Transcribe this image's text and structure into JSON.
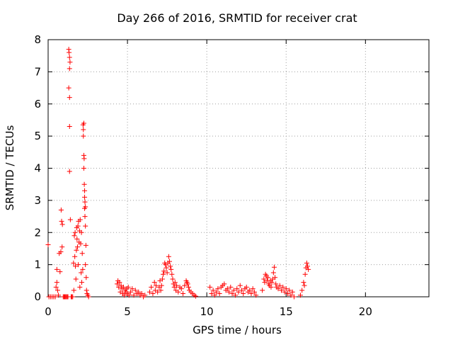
{
  "chart_data": {
    "type": "scatter",
    "title": "Day 266 of 2016, SRMTID for receiver crat",
    "xlabel": "GPS time / hours",
    "ylabel": "SRMTID / TECUs",
    "xlim": [
      0,
      24
    ],
    "ylim": [
      0,
      8
    ],
    "xticks": [
      0,
      5,
      10,
      15,
      20
    ],
    "yticks": [
      0,
      1,
      2,
      3,
      4,
      5,
      6,
      7,
      8
    ],
    "marker": "+",
    "color": "#ff0000",
    "grid": true,
    "series": [
      {
        "name": "crat",
        "points": [
          [
            0.0,
            1.62
          ],
          [
            0.05,
            0.0
          ],
          [
            0.15,
            0.0
          ],
          [
            0.25,
            0.0
          ],
          [
            0.35,
            0.0
          ],
          [
            0.45,
            0.0
          ],
          [
            0.5,
            0.3
          ],
          [
            0.55,
            0.45
          ],
          [
            0.55,
            0.85
          ],
          [
            0.6,
            0.2
          ],
          [
            0.65,
            0.05
          ],
          [
            0.7,
            1.35
          ],
          [
            0.75,
            0.78
          ],
          [
            0.8,
            1.4
          ],
          [
            0.82,
            2.7
          ],
          [
            0.85,
            2.35
          ],
          [
            0.88,
            1.55
          ],
          [
            0.9,
            2.25
          ],
          [
            0.95,
            0.0
          ],
          [
            1.0,
            0.0
          ],
          [
            1.05,
            0.0
          ],
          [
            1.1,
            0.0
          ],
          [
            1.15,
            0.0
          ],
          [
            1.2,
            0.0
          ],
          [
            1.25,
            0.0
          ],
          [
            1.3,
            7.7
          ],
          [
            1.32,
            7.6
          ],
          [
            1.35,
            7.45
          ],
          [
            1.35,
            7.1
          ],
          [
            1.38,
            7.3
          ],
          [
            1.3,
            6.5
          ],
          [
            1.35,
            6.2
          ],
          [
            1.35,
            5.3
          ],
          [
            1.35,
            3.9
          ],
          [
            1.4,
            2.4
          ],
          [
            1.45,
            0.0
          ],
          [
            1.5,
            0.0
          ],
          [
            1.55,
            0.0
          ],
          [
            1.6,
            1.05
          ],
          [
            1.62,
            0.2
          ],
          [
            1.65,
            1.9
          ],
          [
            1.68,
            1.25
          ],
          [
            1.7,
            2.0
          ],
          [
            1.72,
            0.95
          ],
          [
            1.75,
            0.55
          ],
          [
            1.78,
            1.45
          ],
          [
            1.8,
            2.15
          ],
          [
            1.82,
            1.8
          ],
          [
            1.85,
            1.55
          ],
          [
            1.88,
            2.2
          ],
          [
            1.9,
            1.0
          ],
          [
            1.92,
            2.35
          ],
          [
            1.95,
            1.7
          ],
          [
            1.98,
            2.05
          ],
          [
            2.0,
            0.3
          ],
          [
            2.02,
            2.4
          ],
          [
            2.05,
            1.65
          ],
          [
            2.08,
            0.75
          ],
          [
            2.1,
            2.0
          ],
          [
            2.12,
            0.45
          ],
          [
            2.15,
            1.35
          ],
          [
            2.18,
            0.85
          ],
          [
            2.2,
            5.35
          ],
          [
            2.22,
            5.2
          ],
          [
            2.22,
            5.0
          ],
          [
            2.25,
            5.4
          ],
          [
            2.25,
            4.4
          ],
          [
            2.27,
            4.3
          ],
          [
            2.25,
            4.0
          ],
          [
            2.28,
            3.5
          ],
          [
            2.3,
            3.3
          ],
          [
            2.3,
            3.1
          ],
          [
            2.32,
            2.95
          ],
          [
            2.3,
            2.75
          ],
          [
            2.35,
            2.8
          ],
          [
            2.32,
            2.5
          ],
          [
            2.35,
            2.2
          ],
          [
            2.38,
            1.6
          ],
          [
            2.35,
            1.0
          ],
          [
            2.4,
            0.6
          ],
          [
            2.42,
            0.2
          ],
          [
            2.45,
            0.1
          ],
          [
            2.5,
            0.05
          ],
          [
            2.55,
            0.0
          ],
          [
            4.35,
            0.4
          ],
          [
            4.4,
            0.5
          ],
          [
            4.45,
            0.3
          ],
          [
            4.5,
            0.45
          ],
          [
            4.55,
            0.15
          ],
          [
            4.6,
            0.35
          ],
          [
            4.65,
            0.25
          ],
          [
            4.7,
            0.1
          ],
          [
            4.75,
            0.3
          ],
          [
            4.8,
            0.05
          ],
          [
            4.85,
            0.2
          ],
          [
            4.9,
            0.15
          ],
          [
            4.95,
            0.25
          ],
          [
            5.0,
            0.1
          ],
          [
            5.05,
            0.3
          ],
          [
            5.1,
            0.05
          ],
          [
            5.2,
            0.15
          ],
          [
            5.3,
            0.25
          ],
          [
            5.4,
            0.05
          ],
          [
            5.5,
            0.2
          ],
          [
            5.6,
            0.1
          ],
          [
            5.7,
            0.15
          ],
          [
            5.8,
            0.05
          ],
          [
            5.9,
            0.1
          ],
          [
            6.0,
            0.0
          ],
          [
            6.1,
            0.05
          ],
          [
            6.4,
            0.15
          ],
          [
            6.5,
            0.3
          ],
          [
            6.6,
            0.1
          ],
          [
            6.7,
            0.45
          ],
          [
            6.75,
            0.2
          ],
          [
            6.8,
            0.35
          ],
          [
            6.9,
            0.15
          ],
          [
            7.0,
            0.3
          ],
          [
            7.05,
            0.5
          ],
          [
            7.1,
            0.2
          ],
          [
            7.15,
            0.35
          ],
          [
            7.2,
            0.55
          ],
          [
            7.25,
            0.7
          ],
          [
            7.3,
            0.8
          ],
          [
            7.35,
            1.05
          ],
          [
            7.4,
            1.0
          ],
          [
            7.45,
            0.9
          ],
          [
            7.5,
            0.75
          ],
          [
            7.55,
            1.05
          ],
          [
            7.6,
            1.25
          ],
          [
            7.65,
            1.1
          ],
          [
            7.7,
            0.95
          ],
          [
            7.75,
            0.85
          ],
          [
            7.8,
            0.7
          ],
          [
            7.85,
            0.55
          ],
          [
            7.9,
            0.4
          ],
          [
            7.95,
            0.3
          ],
          [
            8.0,
            0.45
          ],
          [
            8.05,
            0.2
          ],
          [
            8.1,
            0.35
          ],
          [
            8.2,
            0.15
          ],
          [
            8.3,
            0.3
          ],
          [
            8.4,
            0.25
          ],
          [
            8.5,
            0.1
          ],
          [
            8.6,
            0.35
          ],
          [
            8.7,
            0.5
          ],
          [
            8.75,
            0.45
          ],
          [
            8.8,
            0.4
          ],
          [
            8.85,
            0.3
          ],
          [
            8.9,
            0.2
          ],
          [
            9.0,
            0.15
          ],
          [
            9.1,
            0.1
          ],
          [
            9.2,
            0.05
          ],
          [
            9.3,
            0.02
          ],
          [
            10.2,
            0.3
          ],
          [
            10.3,
            0.1
          ],
          [
            10.4,
            0.2
          ],
          [
            10.5,
            0.05
          ],
          [
            10.6,
            0.15
          ],
          [
            10.7,
            0.25
          ],
          [
            10.8,
            0.1
          ],
          [
            10.9,
            0.3
          ],
          [
            11.0,
            0.35
          ],
          [
            11.1,
            0.4
          ],
          [
            11.2,
            0.2
          ],
          [
            11.3,
            0.25
          ],
          [
            11.4,
            0.15
          ],
          [
            11.5,
            0.3
          ],
          [
            11.6,
            0.1
          ],
          [
            11.7,
            0.2
          ],
          [
            11.8,
            0.05
          ],
          [
            11.9,
            0.25
          ],
          [
            12.0,
            0.15
          ],
          [
            12.1,
            0.35
          ],
          [
            12.2,
            0.2
          ],
          [
            12.3,
            0.1
          ],
          [
            12.4,
            0.25
          ],
          [
            12.5,
            0.3
          ],
          [
            12.6,
            0.15
          ],
          [
            12.7,
            0.2
          ],
          [
            12.8,
            0.1
          ],
          [
            12.9,
            0.25
          ],
          [
            13.0,
            0.15
          ],
          [
            13.1,
            0.05
          ],
          [
            13.5,
            0.2
          ],
          [
            13.6,
            0.55
          ],
          [
            13.65,
            0.45
          ],
          [
            13.7,
            0.7
          ],
          [
            13.75,
            0.65
          ],
          [
            13.8,
            0.5
          ],
          [
            13.85,
            0.6
          ],
          [
            13.9,
            0.4
          ],
          [
            13.95,
            0.35
          ],
          [
            14.0,
            0.5
          ],
          [
            14.05,
            0.3
          ],
          [
            14.1,
            0.45
          ],
          [
            14.15,
            0.55
          ],
          [
            14.2,
            0.75
          ],
          [
            14.25,
            0.92
          ],
          [
            14.3,
            0.6
          ],
          [
            14.35,
            0.4
          ],
          [
            14.4,
            0.3
          ],
          [
            14.5,
            0.25
          ],
          [
            14.6,
            0.35
          ],
          [
            14.7,
            0.2
          ],
          [
            14.8,
            0.3
          ],
          [
            14.9,
            0.15
          ],
          [
            15.0,
            0.25
          ],
          [
            15.1,
            0.1
          ],
          [
            15.2,
            0.2
          ],
          [
            15.3,
            0.05
          ],
          [
            15.4,
            0.15
          ],
          [
            15.5,
            0.0
          ],
          [
            15.9,
            0.05
          ],
          [
            16.0,
            0.2
          ],
          [
            16.1,
            0.45
          ],
          [
            16.15,
            0.35
          ],
          [
            16.2,
            0.7
          ],
          [
            16.25,
            0.9
          ],
          [
            16.3,
            1.05
          ],
          [
            16.35,
            0.95
          ],
          [
            16.4,
            0.85
          ]
        ]
      }
    ]
  }
}
